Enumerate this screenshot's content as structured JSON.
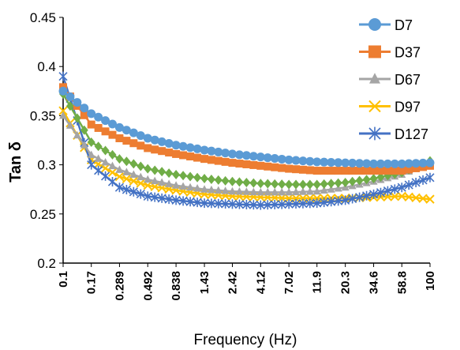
{
  "chart_data": {
    "type": "line",
    "title": "",
    "xlabel": "Frequency (Hz)",
    "ylabel": "Tan δ",
    "x_scale": "log",
    "x": [
      0.1,
      0.17,
      0.289,
      0.492,
      0.838,
      1.43,
      2.42,
      4.12,
      7.02,
      11.9,
      20.3,
      34.6,
      58.8,
      100
    ],
    "x_tick_labels": [
      "0.1",
      "0.17",
      "0.289",
      "0.492",
      "0.838",
      "1.43",
      "2.42",
      "4.12",
      "7.02",
      "11.9",
      "20.3",
      "34.6",
      "58.8",
      "100"
    ],
    "ylim": [
      0.2,
      0.45
    ],
    "y_tick_labels": [
      "0.2",
      "0.25",
      "0.3",
      "0.35",
      "0.4",
      "0.45"
    ],
    "y_ticks": [
      0.2,
      0.25,
      0.3,
      0.35,
      0.4,
      0.45
    ],
    "grid": false,
    "legend_position": "top-right",
    "series": [
      {
        "name": "D7",
        "color": "#5B9BD5",
        "marker": "circle",
        "values": [
          0.375,
          0.352,
          0.338,
          0.327,
          0.32,
          0.315,
          0.311,
          0.308,
          0.305,
          0.303,
          0.302,
          0.301,
          0.301,
          0.302
        ]
      },
      {
        "name": "D37",
        "color": "#ED7D31",
        "marker": "square",
        "values": [
          0.379,
          0.341,
          0.327,
          0.317,
          0.311,
          0.306,
          0.302,
          0.299,
          0.296,
          0.294,
          0.294,
          0.294,
          0.294,
          0.299
        ]
      },
      {
        "name": "D67",
        "color": "#A5A5A5",
        "marker": "triangle",
        "values": [
          0.35,
          0.31,
          0.295,
          0.285,
          0.279,
          0.275,
          0.273,
          0.272,
          0.272,
          0.273,
          0.277,
          0.283,
          0.29,
          0.303
        ]
      },
      {
        "name": "D97",
        "color": "#FFC000",
        "marker": "x",
        "values": [
          0.355,
          0.305,
          0.288,
          0.279,
          0.274,
          0.27,
          0.268,
          0.267,
          0.266,
          0.266,
          0.266,
          0.267,
          0.268,
          0.265
        ]
      },
      {
        "name": "D127",
        "color": "#4472C4",
        "marker": "star",
        "values": [
          0.39,
          0.3,
          0.277,
          0.268,
          0.264,
          0.261,
          0.26,
          0.259,
          0.26,
          0.261,
          0.264,
          0.27,
          0.277,
          0.287
        ]
      },
      {
        "name": "",
        "color": "#70AD47",
        "marker": "diamond",
        "values": [
          0.372,
          0.323,
          0.306,
          0.296,
          0.29,
          0.286,
          0.283,
          0.281,
          0.28,
          0.28,
          0.282,
          0.286,
          0.292,
          0.304
        ]
      }
    ]
  }
}
